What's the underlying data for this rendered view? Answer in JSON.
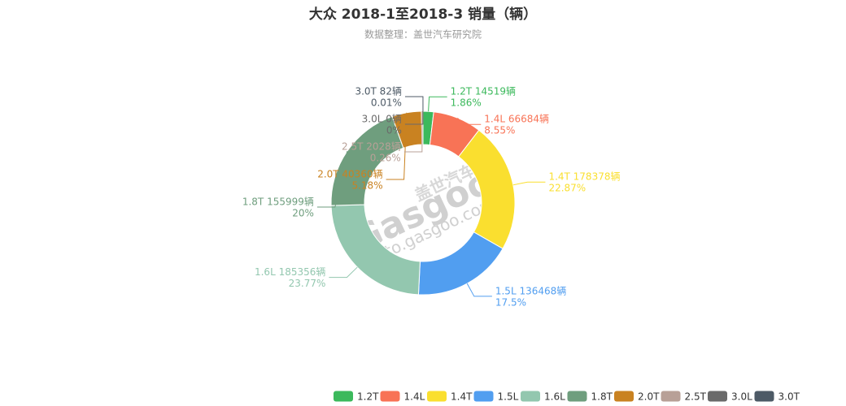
{
  "chart_data": {
    "type": "donut",
    "title": "大众 2018-1至2018-3 销量（辆）",
    "subtitle": "数据整理：盖世汽车研究院",
    "watermark": [
      "盖世汽车",
      "Gasgoo",
      "auto.gasgoo.com"
    ],
    "categories": [
      "1.2T",
      "1.4L",
      "1.4T",
      "1.5L",
      "1.6L",
      "1.8T",
      "2.0T",
      "2.5T",
      "3.0L",
      "3.0T"
    ],
    "values": [
      14519,
      66684,
      178378,
      136468,
      185356,
      155999,
      40360,
      2028,
      0,
      82
    ],
    "value_labels": [
      "1.2T 14519辆",
      "1.4L 66684辆",
      "1.4T 178378辆",
      "1.5L 136468辆",
      "1.6L 185356辆",
      "1.8T 155999辆",
      "2.0T 40360辆",
      "2.5T 2028辆",
      "3.0L 0辆",
      "3.0T 82辆"
    ],
    "percent_labels": [
      "1.86%",
      "8.55%",
      "22.87%",
      "17.5%",
      "23.77%",
      "20%",
      "5.18%",
      "0.26%",
      "0%",
      "0.01%"
    ],
    "colors": [
      "#3cb95c",
      "#f87356",
      "#fadf2f",
      "#519ef0",
      "#93c7af",
      "#6f9e7e",
      "#c98221",
      "#b8a097",
      "#6a6a6a",
      "#4d5a66"
    ],
    "legend": "bottom"
  }
}
